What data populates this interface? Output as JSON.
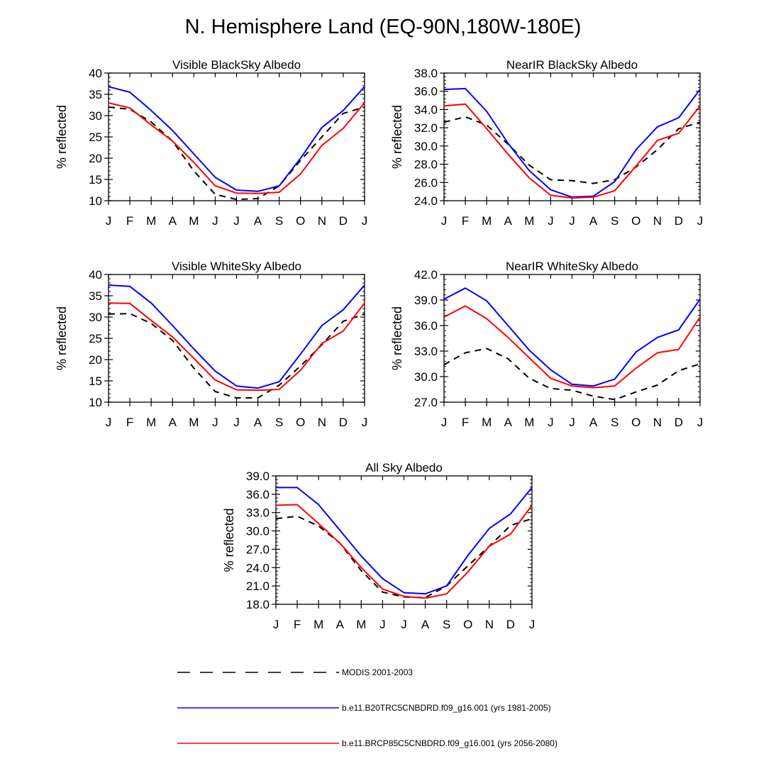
{
  "title": "N. Hemisphere Land (EQ-90N,180W-180E)",
  "chart_data": {
    "type": "line",
    "months": [
      "J",
      "F",
      "M",
      "A",
      "M",
      "J",
      "J",
      "A",
      "S",
      "O",
      "N",
      "D",
      "J"
    ],
    "series_names": [
      "MODIS 2001-2003",
      "b.e11.B20TRC5CNBDRD.f09_g16.001 (yrs 1981-2005)",
      "b.e11.BRCP85C5CNBDRD.f09_g16.001 (yrs 2056-2080)"
    ],
    "series_colors": [
      "#000000",
      "#0000ff",
      "#ff0000"
    ],
    "panels": [
      {
        "title": "Visible BlackSky Albedo",
        "ylabel": "% reflected",
        "ylim": [
          10,
          40
        ],
        "yticks": [
          "10",
          "15",
          "20",
          "25",
          "30",
          "35",
          "40"
        ],
        "modis": [
          32.0,
          31.5,
          28.5,
          24.0,
          17.0,
          11.5,
          10.3,
          10.5,
          13.5,
          19.5,
          25.0,
          30.5,
          32.0
        ],
        "b20tr": [
          36.8,
          35.5,
          31.2,
          26.5,
          21.0,
          15.5,
          12.5,
          12.2,
          13.5,
          20.0,
          27.2,
          31.2,
          36.8
        ],
        "rcp85": [
          33.0,
          31.8,
          27.8,
          24.0,
          19.0,
          13.5,
          11.8,
          11.7,
          12.0,
          16.3,
          23.0,
          27.0,
          33.0
        ]
      },
      {
        "title": "NearIR BlackSky Albedo",
        "ylabel": "% reflected",
        "ylim": [
          24,
          38
        ],
        "yticks": [
          "24.0",
          "26.0",
          "28.0",
          "30.0",
          "32.0",
          "34.0",
          "36.0",
          "38.0"
        ],
        "modis": [
          32.6,
          33.2,
          32.3,
          30.2,
          27.9,
          26.3,
          26.2,
          25.9,
          26.3,
          27.7,
          29.6,
          31.9,
          32.6
        ],
        "b20tr": [
          36.2,
          36.3,
          33.8,
          30.3,
          27.3,
          25.2,
          24.4,
          24.5,
          26.1,
          29.6,
          32.1,
          33.1,
          36.2
        ],
        "rcp85": [
          34.4,
          34.6,
          31.9,
          29.1,
          26.5,
          24.6,
          24.3,
          24.4,
          25.1,
          27.8,
          30.6,
          31.4,
          34.4
        ]
      },
      {
        "title": "Visible WhiteSky Albedo",
        "ylabel": "% reflected",
        "ylim": [
          10,
          40
        ],
        "yticks": [
          "10",
          "15",
          "20",
          "25",
          "30",
          "35",
          "40"
        ],
        "modis": [
          30.7,
          30.8,
          28.5,
          24.5,
          18.0,
          12.5,
          11.0,
          11.0,
          14.0,
          18.5,
          23.5,
          29.0,
          30.7
        ],
        "b20tr": [
          37.5,
          37.2,
          33.3,
          28.0,
          22.5,
          17.3,
          13.8,
          13.3,
          14.8,
          21.3,
          28.0,
          31.7,
          37.5
        ],
        "rcp85": [
          33.3,
          33.2,
          29.2,
          25.3,
          20.3,
          15.2,
          12.9,
          12.8,
          13.0,
          17.5,
          23.8,
          26.7,
          33.3
        ]
      },
      {
        "title": "NearIR WhiteSky Albedo",
        "ylabel": "% reflected",
        "ylim": [
          27,
          42
        ],
        "yticks": [
          "27.0",
          "30.0",
          "33.0",
          "36.0",
          "39.0",
          "42.0"
        ],
        "modis": [
          31.4,
          32.8,
          33.3,
          32.1,
          29.8,
          28.6,
          28.4,
          27.7,
          27.3,
          28.2,
          29.0,
          30.7,
          31.5
        ],
        "b20tr": [
          39.1,
          40.4,
          38.9,
          36.0,
          33.1,
          30.8,
          29.1,
          28.9,
          29.7,
          32.9,
          34.6,
          35.5,
          39.1
        ],
        "rcp85": [
          37.0,
          38.3,
          36.8,
          34.6,
          32.2,
          29.8,
          28.9,
          28.7,
          28.9,
          31.0,
          32.8,
          33.2,
          37.0
        ]
      },
      {
        "title": "All Sky Albedo",
        "ylabel": "% reflected",
        "ylim": [
          18,
          39
        ],
        "yticks": [
          "18.0",
          "21.0",
          "24.0",
          "27.0",
          "30.0",
          "33.0",
          "36.0",
          "39.0"
        ],
        "modis": [
          32.0,
          32.4,
          30.8,
          28.0,
          23.5,
          20.0,
          19.2,
          19.1,
          21.0,
          24.3,
          27.5,
          30.9,
          32.0
        ],
        "b20tr": [
          37.1,
          37.1,
          34.3,
          30.1,
          25.9,
          22.2,
          19.9,
          19.7,
          21.0,
          26.0,
          30.4,
          32.8,
          37.1
        ],
        "rcp85": [
          34.2,
          34.3,
          31.2,
          28.0,
          24.0,
          20.5,
          19.3,
          19.0,
          19.7,
          23.3,
          27.5,
          29.5,
          34.2
        ]
      }
    ]
  }
}
